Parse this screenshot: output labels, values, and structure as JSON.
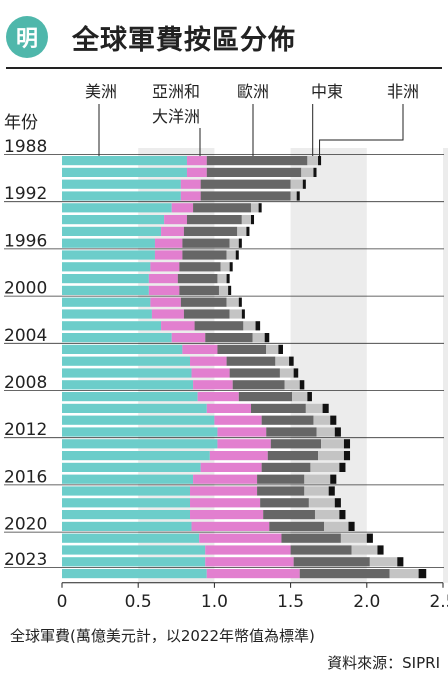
{
  "header": {
    "badge": "明",
    "title": "全球軍費按區分佈"
  },
  "legend": {
    "americas": "美洲",
    "asia_line1": "亞洲和",
    "asia_line2": "大洋洲",
    "europe": "歐洲",
    "middle_east": "中東",
    "africa": "非洲"
  },
  "colors": {
    "americas": "#6ccdca",
    "asia_oceania": "#e27fcf",
    "europe": "#666666",
    "middle_east": "#c4c4c4",
    "africa": "#111111",
    "band": "#ececec"
  },
  "chart_data": {
    "type": "bar",
    "orientation": "horizontal",
    "stacked": true,
    "categories": [
      "1988",
      "1989",
      "1990",
      "1991",
      "1992",
      "1993",
      "1994",
      "1995",
      "1996",
      "1997",
      "1998",
      "1999",
      "2000",
      "2001",
      "2002",
      "2003",
      "2004",
      "2005",
      "2006",
      "2007",
      "2008",
      "2009",
      "2010",
      "2011",
      "2012",
      "2013",
      "2014",
      "2015",
      "2016",
      "2017",
      "2018",
      "2019",
      "2020",
      "2021",
      "2022",
      "2023"
    ],
    "year_label_header": "年份",
    "labeled_years": [
      "1988",
      "1992",
      "1996",
      "2000",
      "2004",
      "2008",
      "2012",
      "2016",
      "2020",
      "2023"
    ],
    "series": [
      {
        "name": "美洲",
        "key": "americas",
        "values": [
          0.82,
          0.82,
          0.78,
          0.78,
          0.72,
          0.67,
          0.65,
          0.61,
          0.61,
          0.58,
          0.57,
          0.57,
          0.58,
          0.59,
          0.65,
          0.72,
          0.79,
          0.84,
          0.85,
          0.86,
          0.89,
          0.95,
          1.0,
          1.02,
          1.02,
          0.97,
          0.91,
          0.86,
          0.84,
          0.84,
          0.84,
          0.85,
          0.9,
          0.94,
          0.94,
          0.95
        ]
      },
      {
        "name": "亞洲和大洋洲",
        "key": "asia_oceania",
        "values": [
          0.13,
          0.13,
          0.13,
          0.13,
          0.14,
          0.15,
          0.15,
          0.18,
          0.18,
          0.19,
          0.19,
          0.2,
          0.2,
          0.21,
          0.22,
          0.22,
          0.23,
          0.24,
          0.25,
          0.26,
          0.27,
          0.29,
          0.31,
          0.32,
          0.35,
          0.38,
          0.4,
          0.42,
          0.44,
          0.46,
          0.48,
          0.51,
          0.54,
          0.56,
          0.58,
          0.61
        ]
      },
      {
        "name": "歐洲",
        "key": "europe",
        "values": [
          0.66,
          0.62,
          0.59,
          0.59,
          0.38,
          0.36,
          0.35,
          0.31,
          0.29,
          0.27,
          0.26,
          0.26,
          0.3,
          0.3,
          0.32,
          0.31,
          0.32,
          0.32,
          0.33,
          0.34,
          0.35,
          0.36,
          0.34,
          0.33,
          0.33,
          0.33,
          0.32,
          0.31,
          0.31,
          0.32,
          0.34,
          0.36,
          0.39,
          0.4,
          0.5,
          0.59
        ]
      },
      {
        "name": "中東",
        "key": "middle_east",
        "values": [
          0.07,
          0.08,
          0.08,
          0.04,
          0.05,
          0.06,
          0.06,
          0.06,
          0.06,
          0.06,
          0.06,
          0.06,
          0.08,
          0.08,
          0.08,
          0.08,
          0.08,
          0.09,
          0.09,
          0.1,
          0.1,
          0.11,
          0.11,
          0.12,
          0.15,
          0.17,
          0.19,
          0.17,
          0.16,
          0.17,
          0.16,
          0.16,
          0.17,
          0.17,
          0.18,
          0.19
        ]
      },
      {
        "name": "非洲",
        "key": "africa",
        "values": [
          0.02,
          0.02,
          0.02,
          0.02,
          0.02,
          0.02,
          0.02,
          0.02,
          0.02,
          0.02,
          0.02,
          0.02,
          0.02,
          0.02,
          0.03,
          0.03,
          0.03,
          0.03,
          0.03,
          0.03,
          0.03,
          0.04,
          0.04,
          0.04,
          0.04,
          0.04,
          0.04,
          0.04,
          0.04,
          0.04,
          0.04,
          0.04,
          0.04,
          0.04,
          0.04,
          0.05
        ]
      }
    ],
    "x_ticks": [
      0,
      0.5,
      1.0,
      1.5,
      2.0,
      2.5
    ],
    "x_tick_labels": [
      "0",
      "0.5",
      "1.0",
      "1.5",
      "2.0",
      "2.5"
    ],
    "xlim": [
      0,
      2.5
    ],
    "xlabel": "全球軍費(萬億美元計，以2022年幣值為標準)",
    "grid": false,
    "source": "資料來源：SIPRI"
  }
}
